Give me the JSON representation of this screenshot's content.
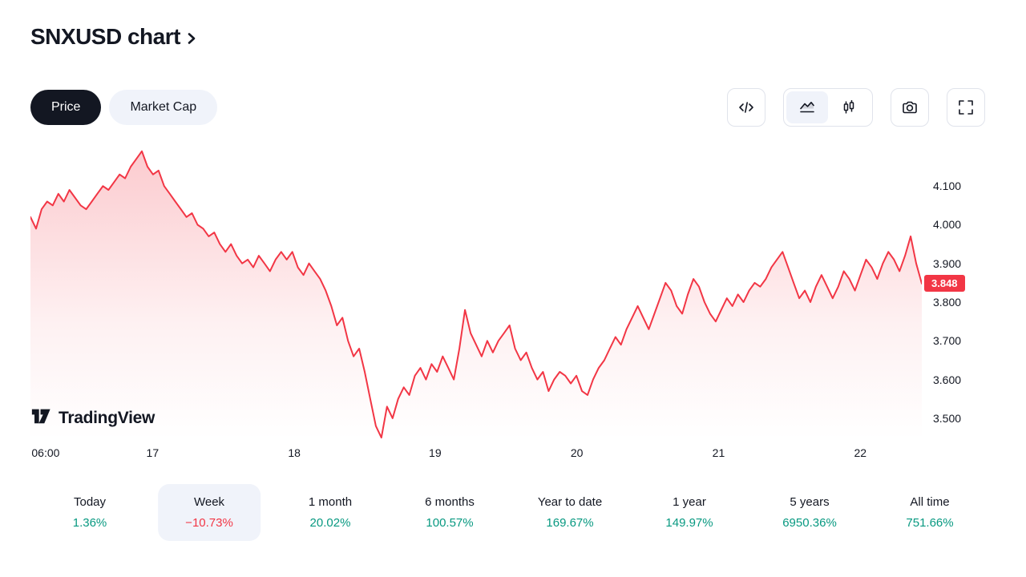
{
  "header": {
    "title": "SNXUSD chart"
  },
  "toggle": {
    "price_label": "Price",
    "market_cap_label": "Market Cap"
  },
  "toolbar": {
    "icons": [
      "embed-code-icon",
      "area-chart-type-icon",
      "candlestick-chart-type-icon",
      "camera-snapshot-icon",
      "fullscreen-icon"
    ]
  },
  "watermark": {
    "brand": "TradingView"
  },
  "chart_data": {
    "type": "area",
    "title": "SNXUSD chart",
    "symbol": "SNXUSD",
    "line_color": "#f23645",
    "fill_color": "#f23645",
    "axis_range": [
      3.446,
      4.208
    ],
    "grid": false,
    "current_price": {
      "label": "3.848",
      "value": 3.848
    },
    "y_ticks": [
      {
        "label": "4.100",
        "value": 4.1
      },
      {
        "label": "4.000",
        "value": 4.0
      },
      {
        "label": "3.900",
        "value": 3.9
      },
      {
        "label": "3.800",
        "value": 3.8
      },
      {
        "label": "3.700",
        "value": 3.7
      },
      {
        "label": "3.600",
        "value": 3.6
      },
      {
        "label": "3.500",
        "value": 3.5
      }
    ],
    "x_ticks": [
      {
        "label": "06:00",
        "pos": 0.017
      },
      {
        "label": "17",
        "pos": 0.137
      },
      {
        "label": "18",
        "pos": 0.296
      },
      {
        "label": "19",
        "pos": 0.454
      },
      {
        "label": "20",
        "pos": 0.613
      },
      {
        "label": "21",
        "pos": 0.772
      },
      {
        "label": "22",
        "pos": 0.931
      }
    ],
    "series": [
      4.02,
      3.99,
      4.04,
      4.06,
      4.05,
      4.08,
      4.06,
      4.09,
      4.07,
      4.05,
      4.04,
      4.06,
      4.08,
      4.1,
      4.09,
      4.11,
      4.13,
      4.12,
      4.15,
      4.17,
      4.19,
      4.15,
      4.13,
      4.14,
      4.1,
      4.08,
      4.06,
      4.04,
      4.02,
      4.03,
      4.0,
      3.99,
      3.97,
      3.98,
      3.95,
      3.93,
      3.95,
      3.92,
      3.9,
      3.91,
      3.89,
      3.92,
      3.9,
      3.88,
      3.91,
      3.93,
      3.91,
      3.93,
      3.89,
      3.87,
      3.9,
      3.88,
      3.86,
      3.83,
      3.79,
      3.74,
      3.76,
      3.7,
      3.66,
      3.68,
      3.62,
      3.55,
      3.48,
      3.45,
      3.53,
      3.5,
      3.55,
      3.58,
      3.56,
      3.61,
      3.63,
      3.6,
      3.64,
      3.62,
      3.66,
      3.63,
      3.6,
      3.68,
      3.78,
      3.72,
      3.69,
      3.66,
      3.7,
      3.67,
      3.7,
      3.72,
      3.74,
      3.68,
      3.65,
      3.67,
      3.63,
      3.6,
      3.62,
      3.57,
      3.6,
      3.62,
      3.61,
      3.59,
      3.61,
      3.57,
      3.56,
      3.6,
      3.63,
      3.65,
      3.68,
      3.71,
      3.69,
      3.73,
      3.76,
      3.79,
      3.76,
      3.73,
      3.77,
      3.81,
      3.85,
      3.83,
      3.79,
      3.77,
      3.82,
      3.86,
      3.84,
      3.8,
      3.77,
      3.75,
      3.78,
      3.81,
      3.79,
      3.82,
      3.8,
      3.83,
      3.85,
      3.84,
      3.86,
      3.89,
      3.91,
      3.93,
      3.89,
      3.85,
      3.81,
      3.83,
      3.8,
      3.84,
      3.87,
      3.84,
      3.81,
      3.84,
      3.88,
      3.86,
      3.83,
      3.87,
      3.91,
      3.89,
      3.86,
      3.9,
      3.93,
      3.91,
      3.88,
      3.92,
      3.97,
      3.9,
      3.848
    ]
  },
  "periods": [
    {
      "label": "Today",
      "value": "1.36%",
      "trend": "up",
      "selected": false
    },
    {
      "label": "Week",
      "value": "−10.73%",
      "trend": "down",
      "selected": true
    },
    {
      "label": "1 month",
      "value": "20.02%",
      "trend": "up",
      "selected": false
    },
    {
      "label": "6 months",
      "value": "100.57%",
      "trend": "up",
      "selected": false
    },
    {
      "label": "Year to date",
      "value": "169.67%",
      "trend": "up",
      "selected": false
    },
    {
      "label": "1 year",
      "value": "149.97%",
      "trend": "up",
      "selected": false
    },
    {
      "label": "5 years",
      "value": "6950.36%",
      "trend": "up",
      "selected": false
    },
    {
      "label": "All time",
      "value": "751.66%",
      "trend": "up",
      "selected": false
    }
  ],
  "colors": {
    "accent_down": "#f23645",
    "accent_up": "#089981",
    "text": "#131722",
    "pill_active_bg": "#131722",
    "pill_inactive_bg": "#f0f3fa",
    "border": "#e0e3eb"
  }
}
